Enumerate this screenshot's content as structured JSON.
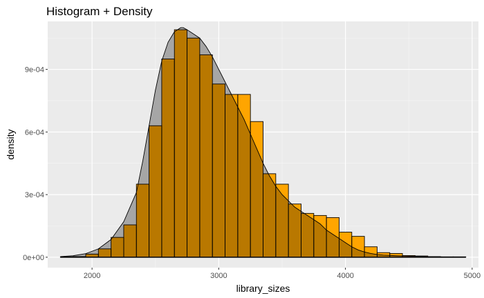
{
  "chart_data": {
    "type": "bar",
    "title": "Histogram + Density",
    "xlabel": "library_sizes",
    "ylabel": "density",
    "xlim": [
      1650,
      5050
    ],
    "ylim": [
      -5e-05,
      0.00113
    ],
    "x_ticks": [
      2000,
      3000,
      4000,
      5000
    ],
    "x_tick_labels": [
      "2000",
      "3000",
      "4000",
      "5000"
    ],
    "y_ticks": [
      0,
      0.0003,
      0.0006,
      0.0009
    ],
    "y_tick_labels": [
      "0e+00",
      "3e-04",
      "6e-04",
      "9e-04"
    ],
    "x_minor_ticks": [
      2500,
      3500,
      4500
    ],
    "y_minor_ticks": [
      0.00015,
      0.00045,
      0.00075,
      0.00105
    ],
    "grid": true,
    "histogram": {
      "name": "histogram",
      "bin_width": 100,
      "bin_starts": [
        1750,
        1850,
        1950,
        2050,
        2150,
        2250,
        2350,
        2450,
        2550,
        2650,
        2750,
        2850,
        2950,
        3050,
        3150,
        3250,
        3350,
        3450,
        3550,
        3650,
        3750,
        3850,
        3950,
        4050,
        4150,
        4250,
        4350,
        4450,
        4550,
        4650,
        4750,
        4850
      ],
      "values": [
        2e-06,
        3e-06,
        1.5e-05,
        4e-05,
        9.5e-05,
        0.000155,
        0.00035,
        0.00063,
        0.00095,
        0.00109,
        0.00105,
        0.00097,
        0.00083,
        0.00078,
        0.00078,
        0.00065,
        0.0004,
        0.00035,
        0.000255,
        0.00021,
        0.0002,
        0.00019,
        0.00012,
        0.0001,
        5e-05,
        2.2e-05,
        1.8e-05,
        8e-06,
        6e-06,
        3e-06,
        2e-06,
        2e-06
      ],
      "fill": "#FFA500",
      "stroke": "#000000"
    },
    "density": {
      "name": "density",
      "x": [
        1750,
        1850,
        1950,
        2050,
        2150,
        2250,
        2350,
        2400,
        2450,
        2500,
        2550,
        2600,
        2650,
        2700,
        2720,
        2750,
        2800,
        2850,
        2900,
        2950,
        3000,
        3050,
        3100,
        3150,
        3200,
        3250,
        3300,
        3350,
        3400,
        3450,
        3500,
        3550,
        3600,
        3650,
        3700,
        3750,
        3800,
        3850,
        3900,
        3950,
        4000,
        4050,
        4100,
        4150,
        4200,
        4250,
        4300,
        4400,
        4500,
        4600,
        4700,
        4800,
        4950
      ],
      "y": [
        3e-06,
        7e-06,
        1.7e-05,
        4e-05,
        8.5e-05,
        0.00017,
        0.00031,
        0.00046,
        0.00063,
        0.0008,
        0.00094,
        0.00103,
        0.00108,
        0.0011,
        0.0011,
        0.00109,
        0.00107,
        0.00105,
        0.00101,
        0.00096,
        0.0009,
        0.00084,
        0.00078,
        0.00072,
        0.00066,
        0.00059,
        0.00052,
        0.00045,
        0.00039,
        0.00034,
        0.0003,
        0.00027,
        0.00024,
        0.00022,
        0.0002,
        0.00018,
        0.00016,
        0.00013,
        0.00011,
        9e-05,
        7e-05,
        5e-05,
        3.5e-05,
        2.5e-05,
        1.8e-05,
        1.3e-05,
        1e-05,
        7e-06,
        5e-06,
        3e-06,
        2e-06,
        1e-06,
        5e-07
      ],
      "fill": "#A6A6A6",
      "stroke": "#000000"
    },
    "colors": {
      "panel_background": "#EBEBEB",
      "grid_major": "#FFFFFF",
      "overlap": "#B97800"
    }
  }
}
